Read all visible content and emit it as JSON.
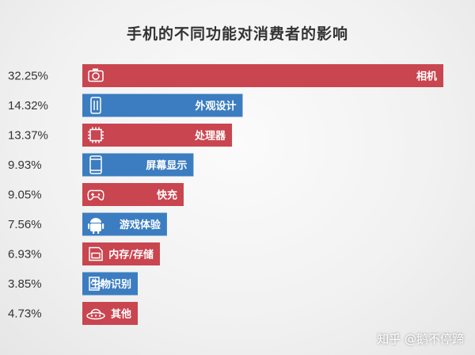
{
  "chart_data": {
    "type": "bar",
    "orientation": "horizontal",
    "title": "手机的不同功能对消费者的影响",
    "categories": [
      "相机",
      "外观设计",
      "处理器",
      "屏幕显示",
      "快充",
      "游戏体验",
      "内存/存储",
      "生物识别",
      "其他"
    ],
    "value_labels": [
      "32.25%",
      "14.32%",
      "13.37%",
      "9.93%",
      "9.05%",
      "7.56%",
      "6.93%",
      "3.85%",
      "4.73%"
    ],
    "values": [
      32.25,
      14.32,
      13.37,
      9.93,
      9.05,
      7.56,
      6.93,
      3.85,
      4.73
    ],
    "icons": [
      "camera-icon",
      "phone-design-icon",
      "chip-icon",
      "phone-screen-icon",
      "gamepad-icon",
      "android-icon",
      "memory-card-icon",
      "fingerprint-icon",
      "ufo-icon"
    ],
    "colors": [
      "#c9454f",
      "#3b7dc0",
      "#c9454f",
      "#3b7dc0",
      "#c9454f",
      "#3b7dc0",
      "#c9454f",
      "#3b7dc0",
      "#c9454f"
    ]
  },
  "watermark": "知乎 @鹅不停蹄"
}
